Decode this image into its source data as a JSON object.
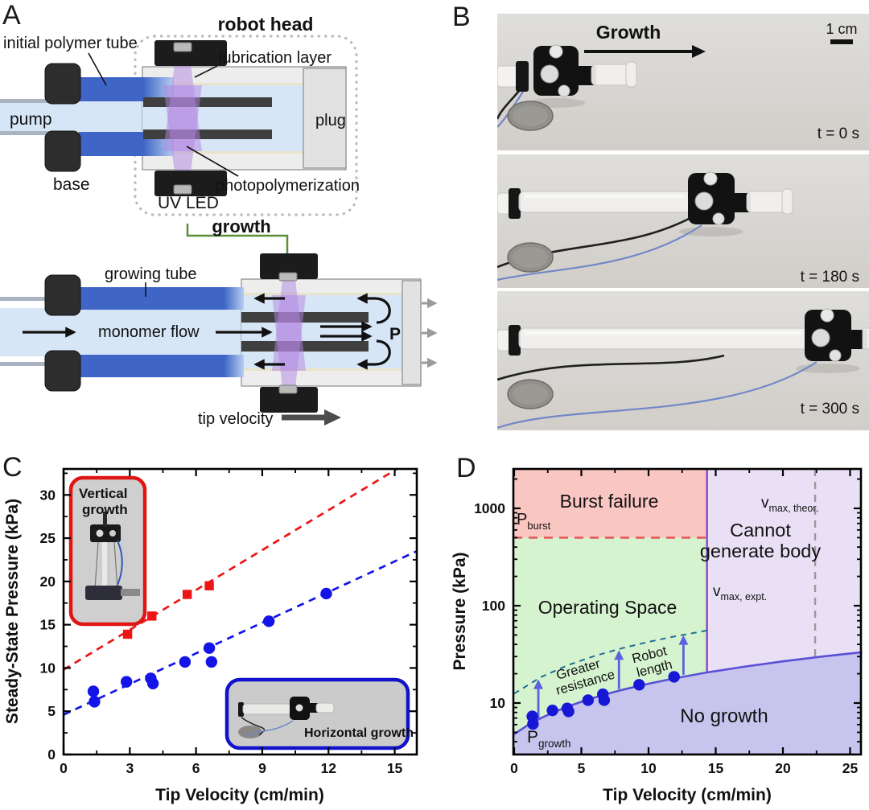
{
  "panel_labels": {
    "a": "A",
    "b": "B",
    "c": "C",
    "d": "D"
  },
  "panel_a": {
    "robot_head": "robot head",
    "initial_polymer_tube": "initial polymer tube",
    "lubrication_layer": "lubrication layer",
    "pump": "pump",
    "plug": "plug",
    "base": "base",
    "uv_led": "UV LED",
    "photopolymerization": "photopolymerization",
    "growth": "growth",
    "growing_tube": "growing tube",
    "monomer_flow": "monomer flow",
    "pressure_symbol": "P",
    "tip_velocity": "tip velocity",
    "colors": {
      "tube_blue": "#3f66c6",
      "uv_purple": "#b285e0",
      "growth_green": "#588f3a"
    }
  },
  "panel_b": {
    "growth_arrow_label": "Growth",
    "scale_bar_label": "1 cm",
    "frames": [
      {
        "timestamp": "t = 0 s"
      },
      {
        "timestamp": "t = 180 s"
      },
      {
        "timestamp": "t = 300 s"
      }
    ]
  },
  "chart_data": [
    {
      "panel": "C",
      "type": "scatter",
      "xlabel": "Tip Velocity (cm/min)",
      "ylabel": "Steady-State Pressure (kPa)",
      "xlim": [
        0,
        16
      ],
      "ylim": [
        0,
        33
      ],
      "xticks": [
        0,
        3,
        6,
        9,
        12,
        15
      ],
      "yticks": [
        0,
        5,
        10,
        15,
        20,
        25,
        30
      ],
      "grid": false,
      "series": [
        {
          "name": "Vertical growth",
          "marker": "square",
          "color": "#ee1515",
          "points": [
            [
              2.9,
              13.9
            ],
            [
              4.0,
              16.0
            ],
            [
              5.6,
              18.5
            ],
            [
              6.6,
              19.5
            ]
          ],
          "fit_line": {
            "style": "dashed",
            "from": [
              0,
              9.8
            ],
            "to": [
              15.1,
              33
            ]
          }
        },
        {
          "name": "Horizontal growth",
          "marker": "circle",
          "color": "#1414e8",
          "points": [
            [
              1.35,
              7.3
            ],
            [
              1.4,
              6.1
            ],
            [
              2.85,
              8.4
            ],
            [
              3.95,
              8.8
            ],
            [
              4.05,
              8.2
            ],
            [
              5.5,
              10.7
            ],
            [
              6.6,
              12.3
            ],
            [
              6.7,
              10.7
            ],
            [
              9.3,
              15.4
            ],
            [
              11.9,
              18.6
            ]
          ],
          "fit_line": {
            "style": "dashed",
            "from": [
              0,
              4.6
            ],
            "to": [
              16,
              23.5
            ]
          }
        }
      ],
      "insets": [
        {
          "label": "Vertical growth",
          "label_lines": [
            "Vertical",
            "growth"
          ],
          "color": "#e11414"
        },
        {
          "label": "Horizontal growth",
          "color": "#1212cc"
        }
      ]
    },
    {
      "panel": "D",
      "type": "scatter",
      "xlabel": "Tip Velocity (cm/min)",
      "ylabel": "Pressure (kPa)",
      "yscale": "log",
      "xlim": [
        0,
        25.9
      ],
      "ylim": [
        3,
        2560
      ],
      "xticks": [
        0,
        5,
        10,
        15,
        20,
        25
      ],
      "yticks": [
        10,
        100,
        1000
      ],
      "regions": [
        {
          "name": "Burst failure",
          "color": "#f9c6c2",
          "text_color": "#ee1a1a"
        },
        {
          "name": "Operating Space",
          "color": "#d6f3cf",
          "text_color": "#2f9322"
        },
        {
          "name": "Cannot generate body",
          "text_lines": [
            "Cannot",
            "generate body"
          ],
          "color": "#eae0f6",
          "text_color": "#7d2de2"
        },
        {
          "name": "No growth",
          "color": "#c7c4ee",
          "text_color": "#2a2ad8"
        }
      ],
      "boundaries": {
        "p_burst": {
          "value_kpa": 500,
          "label_main": "P",
          "label_sub": "burst",
          "color": "#e45b5b",
          "style": "dashed"
        },
        "v_max_expt": {
          "value_cm_min": 14.35,
          "label_main": "v",
          "label_sub": "max, expt.",
          "color": "#8d52cc",
          "style": "solid",
          "label_color": "#7d2de2"
        },
        "v_max_theor": {
          "value_cm_min": 22.4,
          "label_main": "v",
          "label_sub": "max, theor.",
          "color": "#9a9a9a",
          "style": "dashed",
          "label_color": "#8f8f8f"
        },
        "p_growth": {
          "label_main": "P",
          "label_sub": "growth",
          "color": "#5a50d6",
          "label_color": "#2a2ad8",
          "curve_points": [
            [
              0,
              4.8
            ],
            [
              1,
              5.9
            ],
            [
              2,
              7.0
            ],
            [
              3,
              8.1
            ],
            [
              4,
              9.2
            ],
            [
              5,
              10.3
            ],
            [
              6,
              11.4
            ],
            [
              7,
              12.5
            ],
            [
              8,
              13.6
            ],
            [
              9,
              14.7
            ],
            [
              10,
              15.8
            ],
            [
              12,
              18.0
            ],
            [
              14.35,
              20.6
            ],
            [
              17,
              23.5
            ],
            [
              20,
              26.8
            ],
            [
              23,
              30.1
            ],
            [
              25.9,
              33.3
            ]
          ]
        },
        "greater_resistance": {
          "label": "Greater resistance",
          "label_lines": [
            "Greater",
            "resistance"
          ],
          "style": "dashed",
          "color": "#1e6f92",
          "label_color": "#5d79cc",
          "curve_points": [
            [
              0,
              12.5
            ],
            [
              2,
              18.5
            ],
            [
              4,
              24.5
            ],
            [
              6,
              30.5
            ],
            [
              8,
              36.5
            ],
            [
              10,
              42.5
            ],
            [
              12,
              48.5
            ],
            [
              14.35,
              55.5
            ]
          ]
        }
      },
      "annotations": {
        "robot_length": {
          "label": "Robot length",
          "label_lines": [
            "Robot",
            "length"
          ],
          "color": "#5d79cc"
        },
        "arrow_color": "#5a62dd",
        "arrows": [
          {
            "v": 1.8,
            "from_kpa": 6.9,
            "to_kpa": 16.5
          },
          {
            "v": 7.8,
            "from_kpa": 13.9,
            "to_kpa": 33
          },
          {
            "v": 12.6,
            "from_kpa": 19.5,
            "to_kpa": 47
          }
        ]
      },
      "series": [
        {
          "name": "Horizontal growth",
          "marker": "circle",
          "color": "#1717d6",
          "points": [
            [
              1.35,
              7.3
            ],
            [
              1.4,
              6.1
            ],
            [
              2.85,
              8.4
            ],
            [
              3.95,
              8.8
            ],
            [
              4.05,
              8.2
            ],
            [
              5.5,
              10.7
            ],
            [
              6.6,
              12.3
            ],
            [
              6.7,
              10.7
            ],
            [
              9.3,
              15.4
            ],
            [
              11.9,
              18.6
            ]
          ]
        }
      ]
    }
  ]
}
